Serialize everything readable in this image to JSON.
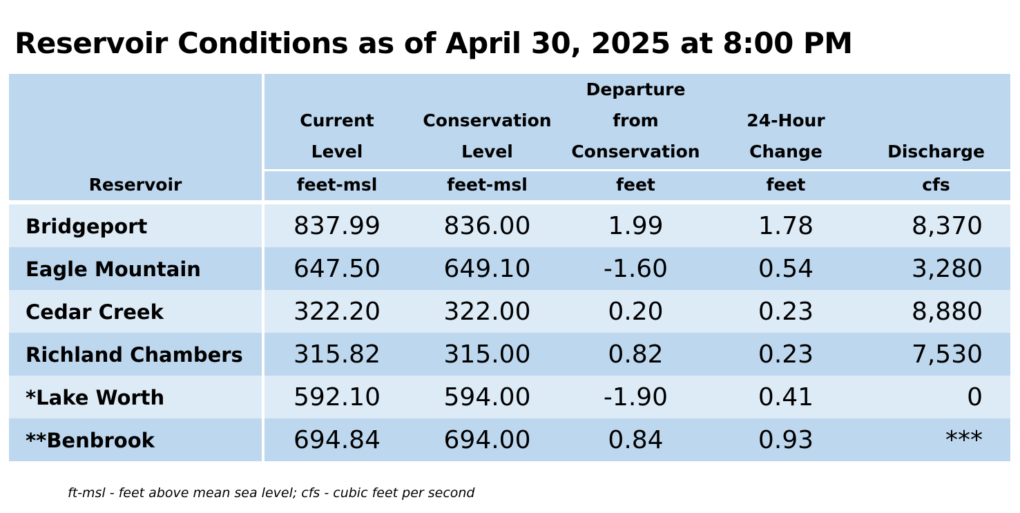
{
  "title": "Reservoir Conditions as of April 30, 2025 at 8:00 PM",
  "header": {
    "reservoir": "Reservoir",
    "current_l1": "Current",
    "current_l2": "Level",
    "current_unit": "feet-msl",
    "conservation_l1": "Conservation",
    "conservation_l2": "Level",
    "conservation_unit": "feet-msl",
    "departure_l1": "Departure",
    "departure_l2": "from",
    "departure_l3": "Conservation",
    "departure_unit": "feet",
    "change_l1": "24-Hour",
    "change_l2": "Change",
    "change_unit": "feet",
    "discharge_l1": "Discharge",
    "discharge_unit": "cfs"
  },
  "rows": [
    {
      "name": "Bridgeport",
      "current": "837.99",
      "conservation": "836.00",
      "departure": "1.99",
      "change": "1.78",
      "discharge": "8,370"
    },
    {
      "name": "Eagle Mountain",
      "current": "647.50",
      "conservation": "649.10",
      "departure": "-1.60",
      "change": "0.54",
      "discharge": "3,280"
    },
    {
      "name": "Cedar Creek",
      "current": "322.20",
      "conservation": "322.00",
      "departure": "0.20",
      "change": "0.23",
      "discharge": "8,880"
    },
    {
      "name": "Richland Chambers",
      "current": "315.82",
      "conservation": "315.00",
      "departure": "0.82",
      "change": "0.23",
      "discharge": "7,530"
    },
    {
      "name": "*Lake Worth",
      "current": "592.10",
      "conservation": "594.00",
      "departure": "-1.90",
      "change": "0.41",
      "discharge": "0"
    },
    {
      "name": "**Benbrook",
      "current": "694.84",
      "conservation": "694.00",
      "departure": "0.84",
      "change": "0.93",
      "discharge": "***"
    }
  ],
  "footnote": "ft-msl - feet above mean sea level; cfs - cubic feet per second",
  "colors": {
    "header": "#bdd7ee",
    "row_light": "#ddebf7",
    "row_dark": "#bdd7ee"
  }
}
